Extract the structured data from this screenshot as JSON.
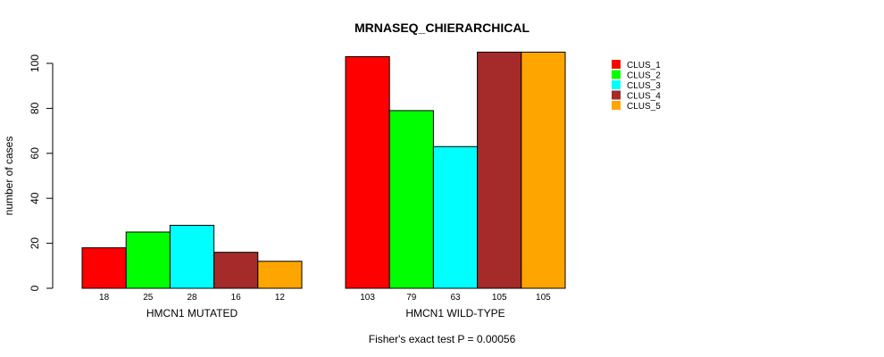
{
  "chart_data": {
    "type": "bar",
    "title": "MRNASEQ_CHIERARCHICAL",
    "ylabel": "number of cases",
    "ylim": [
      0,
      105
    ],
    "yticks": [
      0,
      20,
      40,
      60,
      80,
      100
    ],
    "groups": [
      "HMCN1 MUTATED",
      "HMCN1 WILD-TYPE"
    ],
    "series": [
      {
        "name": "CLUS_1",
        "color": "#ff0000",
        "values": [
          18,
          103
        ]
      },
      {
        "name": "CLUS_2",
        "color": "#00ff00",
        "values": [
          25,
          79
        ]
      },
      {
        "name": "CLUS_3",
        "color": "#00ffff",
        "values": [
          28,
          63
        ]
      },
      {
        "name": "CLUS_4",
        "color": "#a52a2a",
        "values": [
          16,
          105
        ]
      },
      {
        "name": "CLUS_5",
        "color": "#ffa500",
        "values": [
          12,
          105
        ]
      }
    ],
    "legend_position": "top-right",
    "footnote": "Fisher's exact test P = 0.00056"
  }
}
